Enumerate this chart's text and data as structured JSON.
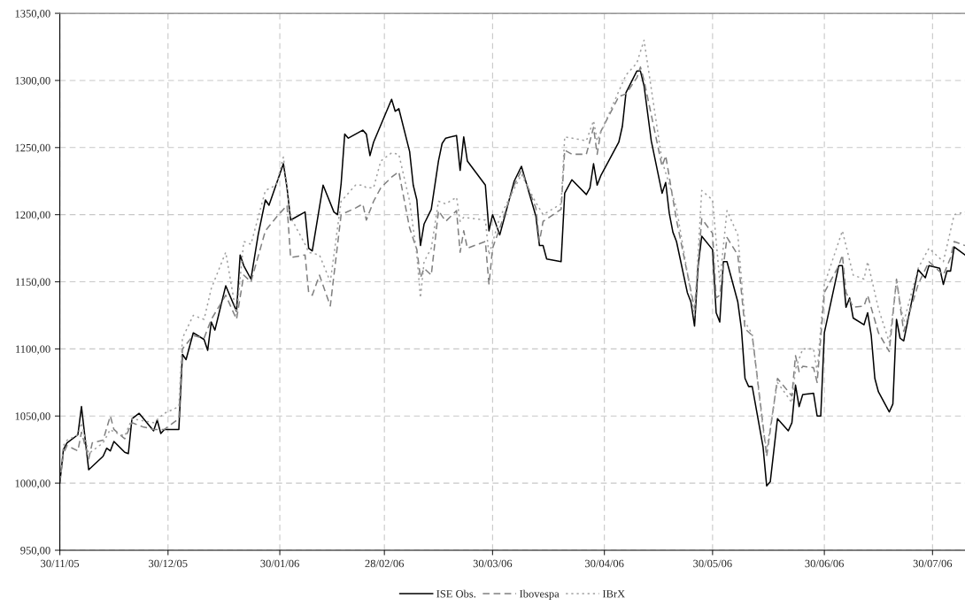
{
  "chart_data": {
    "type": "line",
    "xlim": [
      "2005-11-30",
      "2006-08-08"
    ],
    "ylim": [
      950,
      1350
    ],
    "xticks": [
      {
        "value": "2005-11-30",
        "label": "30/11/05"
      },
      {
        "value": "2005-12-30",
        "label": "30/12/05"
      },
      {
        "value": "2006-01-30",
        "label": "30/01/06"
      },
      {
        "value": "2006-02-28",
        "label": "28/02/06"
      },
      {
        "value": "2006-03-30",
        "label": "30/03/06"
      },
      {
        "value": "2006-04-30",
        "label": "30/04/06"
      },
      {
        "value": "2006-05-30",
        "label": "30/05/06"
      },
      {
        "value": "2006-06-30",
        "label": "30/06/06"
      },
      {
        "value": "2006-07-30",
        "label": "30/07/06"
      }
    ],
    "yticks": [
      {
        "value": 950,
        "label": "950,00"
      },
      {
        "value": 1000,
        "label": "1000,00"
      },
      {
        "value": 1050,
        "label": "1050,00"
      },
      {
        "value": 1100,
        "label": "1100,00"
      },
      {
        "value": 1150,
        "label": "1150,00"
      },
      {
        "value": 1200,
        "label": "1200,00"
      },
      {
        "value": 1250,
        "label": "1250,00"
      },
      {
        "value": 1300,
        "label": "1300,00"
      },
      {
        "value": 1350,
        "label": "1350,00"
      }
    ],
    "grid": true,
    "legend": "bottom",
    "marker": "none",
    "series": [
      {
        "name": "ISE Obs.",
        "color": "#000000",
        "line_style": "solid",
        "x": [
          "2005-11-30",
          "2005-12-01",
          "2005-12-02",
          "2005-12-05",
          "2005-12-06",
          "2005-12-08",
          "2005-12-12",
          "2005-12-13",
          "2005-12-14",
          "2005-12-15",
          "2005-12-18",
          "2005-12-19",
          "2005-12-20",
          "2005-12-22",
          "2005-12-26",
          "2005-12-27",
          "2005-12-28",
          "2005-12-29",
          "2006-01-02",
          "2006-01-03",
          "2006-01-04",
          "2006-01-06",
          "2006-01-09",
          "2006-01-10",
          "2006-01-11",
          "2006-01-12",
          "2006-01-13",
          "2006-01-15",
          "2006-01-18",
          "2006-01-19",
          "2006-01-20",
          "2006-01-22",
          "2006-01-24",
          "2006-01-26",
          "2006-01-27",
          "2006-01-31",
          "2006-02-01",
          "2006-02-02",
          "2006-02-06",
          "2006-02-07",
          "2006-02-08",
          "2006-02-11",
          "2006-02-14",
          "2006-02-15",
          "2006-02-16",
          "2006-02-17",
          "2006-02-18",
          "2006-02-22",
          "2006-02-23",
          "2006-02-24",
          "2006-02-25",
          "2006-03-02",
          "2006-03-03",
          "2006-03-04",
          "2006-03-07",
          "2006-03-08",
          "2006-03-09",
          "2006-03-10",
          "2006-03-11",
          "2006-03-13",
          "2006-03-15",
          "2006-03-16",
          "2006-03-17",
          "2006-03-20",
          "2006-03-21",
          "2006-03-22",
          "2006-03-23",
          "2006-03-28",
          "2006-03-29",
          "2006-03-30",
          "2006-04-01",
          "2006-04-05",
          "2006-04-07",
          "2006-04-11",
          "2006-04-12",
          "2006-04-13",
          "2006-04-14",
          "2006-04-18",
          "2006-04-19",
          "2006-04-21",
          "2006-04-25",
          "2006-04-26",
          "2006-04-27",
          "2006-04-28",
          "2006-04-29",
          "2006-05-04",
          "2006-05-05",
          "2006-05-06",
          "2006-05-09",
          "2006-05-10",
          "2006-05-11",
          "2006-05-13",
          "2006-05-16",
          "2006-05-17",
          "2006-05-18",
          "2006-05-19",
          "2006-05-20",
          "2006-05-23",
          "2006-05-24",
          "2006-05-25",
          "2006-05-26",
          "2006-05-27",
          "2006-05-30",
          "2006-05-31",
          "2006-06-01",
          "2006-06-02",
          "2006-06-03",
          "2006-06-06",
          "2006-06-07",
          "2006-06-08",
          "2006-06-09",
          "2006-06-10",
          "2006-06-13",
          "2006-06-14",
          "2006-06-15",
          "2006-06-17",
          "2006-06-20",
          "2006-06-21",
          "2006-06-22",
          "2006-06-23",
          "2006-06-24",
          "2006-06-27",
          "2006-06-28",
          "2006-06-29",
          "2006-06-30",
          "2006-07-04",
          "2006-07-05",
          "2006-07-06",
          "2006-07-07",
          "2006-07-08",
          "2006-07-11",
          "2006-07-12",
          "2006-07-13",
          "2006-07-14",
          "2006-07-15",
          "2006-07-18",
          "2006-07-19",
          "2006-07-20",
          "2006-07-21",
          "2006-07-22",
          "2006-07-26",
          "2006-07-28",
          "2006-07-29",
          "2006-08-01",
          "2006-08-02",
          "2006-08-03",
          "2006-08-04",
          "2006-08-05",
          "2006-08-08"
        ],
        "values": [
          1000,
          1025,
          1030,
          1036,
          1057,
          1010,
          1020,
          1026,
          1024,
          1031,
          1023,
          1022,
          1048,
          1052,
          1039,
          1047,
          1037,
          1040,
          1040,
          1096,
          1092,
          1112,
          1107,
          1099,
          1120,
          1114,
          1125,
          1147,
          1128,
          1170,
          1162,
          1152,
          1185,
          1211,
          1207,
          1238,
          1220,
          1196,
          1202,
          1175,
          1173,
          1222,
          1202,
          1200,
          1223,
          1260,
          1257,
          1263,
          1260,
          1244,
          1254,
          1286,
          1277,
          1279,
          1247,
          1222,
          1211,
          1177,
          1193,
          1204,
          1240,
          1253,
          1257,
          1259,
          1233,
          1258,
          1240,
          1222,
          1188,
          1200,
          1185,
          1225,
          1236,
          1199,
          1177,
          1177,
          1167,
          1165,
          1216,
          1226,
          1215,
          1220,
          1238,
          1222,
          1229,
          1254,
          1266,
          1291,
          1307,
          1307,
          1296,
          1255,
          1216,
          1224,
          1201,
          1187,
          1180,
          1142,
          1135,
          1117,
          1162,
          1184,
          1174,
          1127,
          1120,
          1165,
          1165,
          1135,
          1115,
          1078,
          1072,
          1072,
          1027,
          998,
          1001,
          1048,
          1039,
          1045,
          1073,
          1057,
          1066,
          1067,
          1050,
          1050,
          1112,
          1162,
          1162,
          1131,
          1138,
          1123,
          1118,
          1127,
          1110,
          1078,
          1068,
          1053,
          1059,
          1122,
          1108,
          1106,
          1159,
          1153,
          1162,
          1160,
          1148,
          1158,
          1158,
          1176,
          1170
        ]
      },
      {
        "name": "Ibovespa",
        "color": "#808080",
        "line_style": "dashed",
        "x": [
          "2005-11-30",
          "2005-12-01",
          "2005-12-02",
          "2005-12-05",
          "2005-12-06",
          "2005-12-08",
          "2005-12-09",
          "2005-12-12",
          "2005-12-14",
          "2005-12-15",
          "2005-12-18",
          "2005-12-20",
          "2005-12-23",
          "2005-12-26",
          "2005-12-29",
          "2006-01-02",
          "2006-01-03",
          "2006-01-06",
          "2006-01-09",
          "2006-01-11",
          "2006-01-15",
          "2006-01-18",
          "2006-01-20",
          "2006-01-22",
          "2006-01-26",
          "2006-01-29",
          "2006-02-01",
          "2006-02-02",
          "2006-02-06",
          "2006-02-07",
          "2006-02-08",
          "2006-02-10",
          "2006-02-13",
          "2006-02-16",
          "2006-02-20",
          "2006-02-22",
          "2006-02-23",
          "2006-02-25",
          "2006-02-27",
          "2006-03-02",
          "2006-03-04",
          "2006-03-07",
          "2006-03-09",
          "2006-03-10",
          "2006-03-11",
          "2006-03-13",
          "2006-03-15",
          "2006-03-17",
          "2006-03-20",
          "2006-03-21",
          "2006-03-22",
          "2006-03-23",
          "2006-03-28",
          "2006-03-29",
          "2006-03-30",
          "2006-04-01",
          "2006-04-05",
          "2006-04-07",
          "2006-04-11",
          "2006-04-12",
          "2006-04-13",
          "2006-04-18",
          "2006-04-19",
          "2006-04-21",
          "2006-04-25",
          "2006-04-27",
          "2006-04-28",
          "2006-04-29",
          "2006-05-04",
          "2006-05-06",
          "2006-05-09",
          "2006-05-10",
          "2006-05-11",
          "2006-05-16",
          "2006-05-17",
          "2006-05-20",
          "2006-05-25",
          "2006-05-27",
          "2006-05-30",
          "2006-05-31",
          "2006-06-01",
          "2006-06-03",
          "2006-06-06",
          "2006-06-08",
          "2006-06-10",
          "2006-06-13",
          "2006-06-14",
          "2006-06-17",
          "2006-06-21",
          "2006-06-22",
          "2006-06-23",
          "2006-06-24",
          "2006-06-27",
          "2006-06-28",
          "2006-06-30",
          "2006-07-04",
          "2006-07-05",
          "2006-07-06",
          "2006-07-08",
          "2006-07-11",
          "2006-07-12",
          "2006-07-15",
          "2006-07-18",
          "2006-07-20",
          "2006-07-22",
          "2006-07-26",
          "2006-07-29",
          "2006-08-02",
          "2006-08-04",
          "2006-08-05",
          "2006-08-08"
        ],
        "values": [
          1000,
          1022,
          1028,
          1024,
          1038,
          1018,
          1030,
          1032,
          1050,
          1040,
          1033,
          1045,
          1042,
          1040,
          1040,
          1048,
          1100,
          1110,
          1108,
          1122,
          1140,
          1122,
          1155,
          1150,
          1188,
          1198,
          1207,
          1168,
          1170,
          1142,
          1140,
          1155,
          1132,
          1200,
          1205,
          1208,
          1196,
          1210,
          1220,
          1228,
          1232,
          1190,
          1174,
          1153,
          1160,
          1155,
          1203,
          1195,
          1203,
          1172,
          1188,
          1175,
          1180,
          1148,
          1175,
          1190,
          1222,
          1233,
          1205,
          1180,
          1195,
          1204,
          1248,
          1245,
          1245,
          1265,
          1245,
          1262,
          1288,
          1290,
          1302,
          1310,
          1300,
          1236,
          1244,
          1196,
          1130,
          1197,
          1186,
          1138,
          1140,
          1183,
          1170,
          1115,
          1110,
          1043,
          1020,
          1078,
          1065,
          1095,
          1083,
          1087,
          1086,
          1075,
          1142,
          1162,
          1170,
          1142,
          1131,
          1132,
          1140,
          1112,
          1098,
          1152,
          1113,
          1148,
          1165,
          1155,
          1168,
          1180,
          1177
        ]
      },
      {
        "name": "IBrX",
        "color": "#a0a0a0",
        "line_style": "dotted",
        "x": [
          "2005-11-30",
          "2005-12-01",
          "2005-12-02",
          "2005-12-05",
          "2005-12-06",
          "2005-12-08",
          "2005-12-12",
          "2005-12-14",
          "2005-12-15",
          "2005-12-18",
          "2005-12-20",
          "2005-12-26",
          "2005-12-29",
          "2006-01-02",
          "2006-01-03",
          "2006-01-06",
          "2006-01-09",
          "2006-01-11",
          "2006-01-15",
          "2006-01-18",
          "2006-01-20",
          "2006-01-22",
          "2006-01-26",
          "2006-01-29",
          "2006-01-31",
          "2006-02-02",
          "2006-02-06",
          "2006-02-07",
          "2006-02-10",
          "2006-02-13",
          "2006-02-16",
          "2006-02-20",
          "2006-02-22",
          "2006-02-23",
          "2006-02-25",
          "2006-02-27",
          "2006-03-02",
          "2006-03-04",
          "2006-03-07",
          "2006-03-09",
          "2006-03-10",
          "2006-03-11",
          "2006-03-13",
          "2006-03-15",
          "2006-03-17",
          "2006-03-20",
          "2006-03-21",
          "2006-03-22",
          "2006-03-28",
          "2006-03-29",
          "2006-04-01",
          "2006-04-07",
          "2006-04-11",
          "2006-04-13",
          "2006-04-18",
          "2006-04-19",
          "2006-04-25",
          "2006-04-27",
          "2006-04-28",
          "2006-05-04",
          "2006-05-06",
          "2006-05-09",
          "2006-05-11",
          "2006-05-16",
          "2006-05-20",
          "2006-05-25",
          "2006-05-27",
          "2006-05-30",
          "2006-06-01",
          "2006-06-03",
          "2006-06-06",
          "2006-06-08",
          "2006-06-10",
          "2006-06-13",
          "2006-06-14",
          "2006-06-17",
          "2006-06-21",
          "2006-06-22",
          "2006-06-24",
          "2006-06-27",
          "2006-06-28",
          "2006-06-30",
          "2006-07-04",
          "2006-07-05",
          "2006-07-08",
          "2006-07-11",
          "2006-07-12",
          "2006-07-15",
          "2006-07-18",
          "2006-07-20",
          "2006-07-22",
          "2006-07-26",
          "2006-07-29",
          "2006-08-02",
          "2006-08-05",
          "2006-08-08"
        ],
        "values": [
          1000,
          1028,
          1032,
          1036,
          1045,
          1022,
          1030,
          1040,
          1038,
          1035,
          1048,
          1045,
          1052,
          1057,
          1108,
          1125,
          1122,
          1145,
          1172,
          1125,
          1180,
          1178,
          1218,
          1222,
          1243,
          1198,
          1178,
          1172,
          1170,
          1150,
          1210,
          1222,
          1222,
          1220,
          1220,
          1240,
          1246,
          1245,
          1210,
          1170,
          1138,
          1165,
          1175,
          1210,
          1208,
          1213,
          1195,
          1198,
          1196,
          1170,
          1198,
          1230,
          1209,
          1200,
          1208,
          1258,
          1255,
          1270,
          1255,
          1292,
          1304,
          1313,
          1330,
          1240,
          1205,
          1125,
          1218,
          1211,
          1150,
          1203,
          1185,
          1120,
          1111,
          1040,
          1025,
          1075,
          1060,
          1085,
          1100,
          1100,
          1083,
          1148,
          1180,
          1188,
          1155,
          1152,
          1165,
          1130,
          1105,
          1150,
          1120,
          1160,
          1175,
          1165,
          1200,
          1202
        ]
      }
    ]
  }
}
